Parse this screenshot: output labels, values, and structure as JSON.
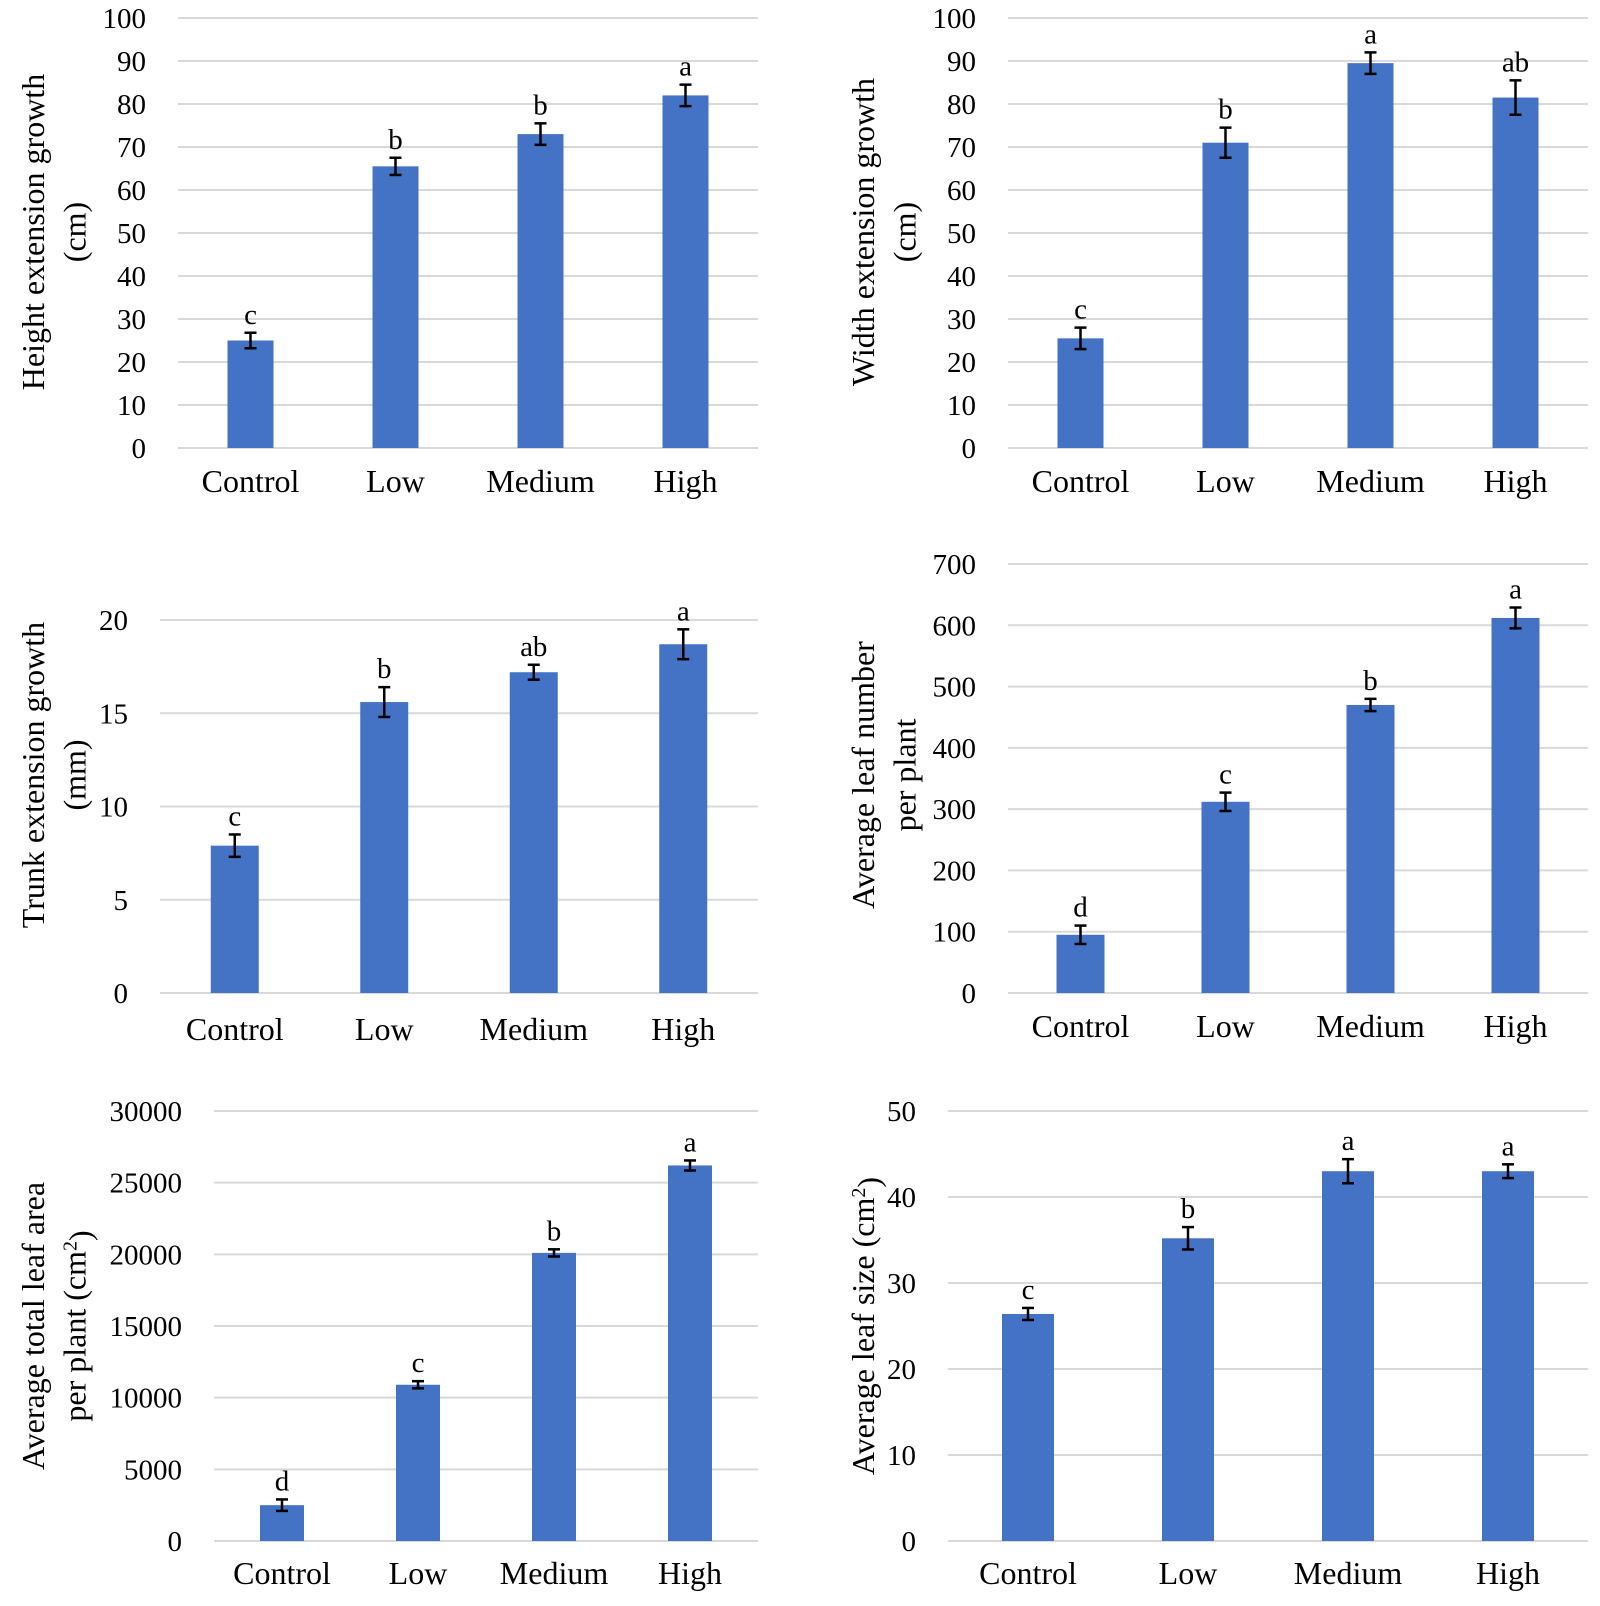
{
  "chart_data": [
    {
      "type": "bar",
      "categories": [
        "Control",
        "Low",
        "Medium",
        "High"
      ],
      "values": [
        25,
        65.5,
        73,
        82
      ],
      "errors": [
        1.8,
        2,
        2.5,
        2.5
      ],
      "significance": [
        "c",
        "b",
        "b",
        "a"
      ],
      "ylabel_lines": [
        "Height extension growth",
        "(cm)"
      ],
      "ylim": [
        0,
        100
      ],
      "yticks": [
        0,
        10,
        20,
        30,
        40,
        50,
        60,
        70,
        80,
        90,
        100
      ],
      "grid": true
    },
    {
      "type": "bar",
      "categories": [
        "Control",
        "Low",
        "Medium",
        "High"
      ],
      "values": [
        25.5,
        71,
        89.5,
        81.5
      ],
      "errors": [
        2.5,
        3.5,
        2.5,
        4
      ],
      "significance": [
        "c",
        "b",
        "a",
        "ab"
      ],
      "ylabel_lines": [
        "Width extension growth",
        "(cm)"
      ],
      "ylim": [
        0,
        100
      ],
      "yticks": [
        0,
        10,
        20,
        30,
        40,
        50,
        60,
        70,
        80,
        90,
        100
      ],
      "grid": true
    },
    {
      "type": "bar",
      "categories": [
        "Control",
        "Low",
        "Medium",
        "High"
      ],
      "values": [
        7.9,
        15.6,
        17.2,
        18.7
      ],
      "errors": [
        0.6,
        0.8,
        0.4,
        0.8
      ],
      "significance": [
        "c",
        "b",
        "ab",
        "a"
      ],
      "ylabel_lines": [
        "Trunk extension growth",
        "(mm)"
      ],
      "ylim": [
        0,
        20
      ],
      "yticks": [
        0,
        5,
        10,
        15,
        20
      ],
      "grid": true
    },
    {
      "type": "bar",
      "categories": [
        "Control",
        "Low",
        "Medium",
        "High"
      ],
      "values": [
        95,
        312,
        470,
        612
      ],
      "errors": [
        15,
        15,
        10,
        17
      ],
      "significance": [
        "d",
        "c",
        "b",
        "a"
      ],
      "ylabel_lines": [
        "Average leaf number",
        "per plant"
      ],
      "ylim": [
        0,
        700
      ],
      "yticks": [
        0,
        100,
        200,
        300,
        400,
        500,
        600,
        700
      ],
      "grid": true
    },
    {
      "type": "bar",
      "categories": [
        "Control",
        "Low",
        "Medium",
        "High"
      ],
      "values": [
        2500,
        10900,
        20100,
        26200
      ],
      "errors": [
        400,
        250,
        250,
        350
      ],
      "significance": [
        "d",
        "c",
        "b",
        "a"
      ],
      "ylabel_lines": [
        "Average total leaf area",
        "per plant (cm",
        "2",
        ")"
      ],
      "ylim": [
        0,
        30000
      ],
      "yticks": [
        0,
        5000,
        10000,
        15000,
        20000,
        25000,
        30000
      ],
      "grid": true
    },
    {
      "type": "bar",
      "categories": [
        "Control",
        "Low",
        "Medium",
        "High"
      ],
      "values": [
        26.4,
        35.2,
        43,
        43
      ],
      "errors": [
        0.7,
        1.3,
        1.4,
        0.8
      ],
      "significance": [
        "c",
        "b",
        "a",
        "a"
      ],
      "ylabel_lines": [
        "Average leaf size (cm",
        "2",
        ")"
      ],
      "ylim": [
        0,
        50
      ],
      "yticks": [
        0,
        10,
        20,
        30,
        40,
        50
      ],
      "grid": true
    }
  ]
}
